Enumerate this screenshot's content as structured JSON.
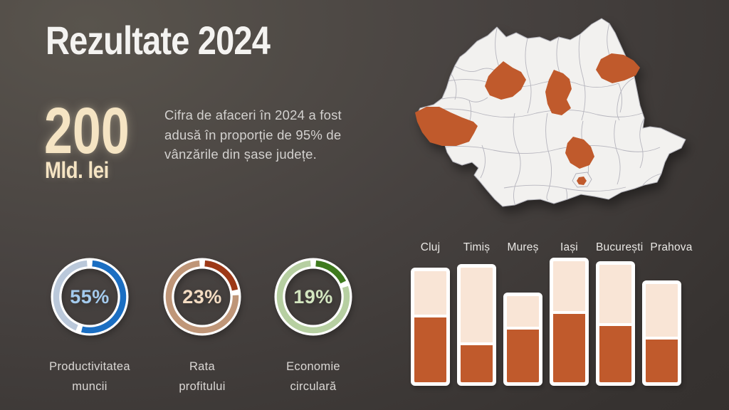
{
  "slide": {
    "title": "Rezultate 2024",
    "kpi": {
      "value": "200",
      "unit": "Mld. lei"
    },
    "description": "Cifra de afaceri în 2024 a fost adusă în proporție de 95% de vânzările din șase județe."
  },
  "colors": {
    "accent_orange": "#c05a2c",
    "bar_light": "#f9e5d6",
    "bar_border": "#ffffff",
    "map_base": "#f2f1ef",
    "map_border": "#b0afb8",
    "cream": "#f5e4c3",
    "donut_blue_dark": "#1a6ec2",
    "donut_blue_light": "#bac8da",
    "donut_rust_dark": "#9d3917",
    "donut_rust_light": "#bf9678",
    "donut_green_dark": "#3f7a1e",
    "donut_green_light": "#b6cfa1"
  },
  "map": {
    "highlighted_counties": [
      "Cluj",
      "Timiș",
      "Mureș",
      "Iași",
      "București",
      "Prahova"
    ]
  },
  "chart_data": [
    {
      "type": "donut",
      "title": "Productivitatea muncii",
      "label_lines": [
        "Productivitatea",
        "muncii"
      ],
      "value": 55,
      "remainder": 45,
      "dark": "#1a6ec2",
      "light": "#bac8da",
      "text_color": "#a4cbee"
    },
    {
      "type": "donut",
      "title": "Rata profitului",
      "label_lines": [
        "Rata",
        "profitului"
      ],
      "value": 23,
      "remainder": 77,
      "dark": "#9d3917",
      "light": "#bf9678",
      "text_color": "#f4dcc2"
    },
    {
      "type": "donut",
      "title": "Economie circulară",
      "label_lines": [
        "Economie",
        "circulară"
      ],
      "value": 19,
      "remainder": 81,
      "dark": "#3f7a1e",
      "light": "#b6cfa1",
      "text_color": "#d3e6c0"
    },
    {
      "type": "bar",
      "title": "",
      "categories": [
        "Cluj",
        "Timiș",
        "Mureș",
        "Iași",
        "București",
        "Prahova"
      ],
      "series": [
        {
          "name": "bar_total_height",
          "values": [
            92,
            95,
            73,
            100,
            97,
            82
          ]
        },
        {
          "name": "filled_portion",
          "values": [
            56,
            33,
            47,
            59,
            49,
            38
          ]
        }
      ],
      "units": "relative, % of tallest bar",
      "ylim": [
        0,
        100
      ],
      "grid": false,
      "legend": false
    }
  ]
}
